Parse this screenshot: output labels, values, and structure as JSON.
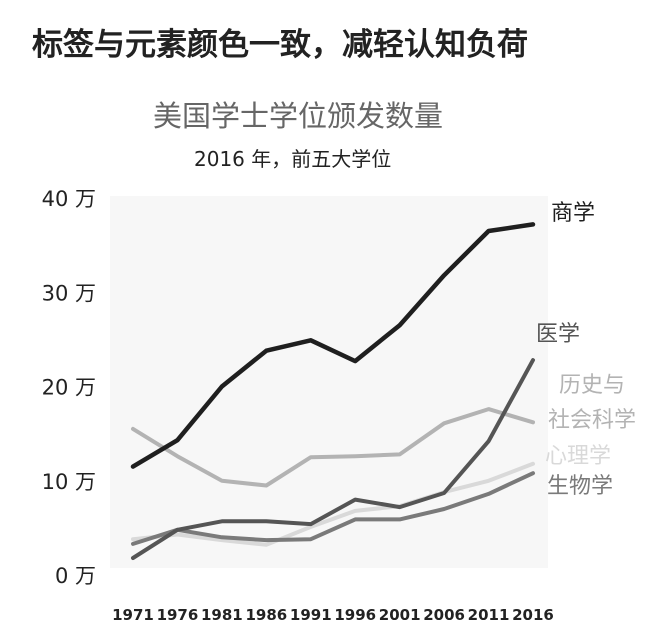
{
  "headline": "标签与元素颜色一致，减轻认知负荷",
  "chart_data": {
    "type": "line",
    "title": "美国学士学位颁发数量",
    "subtitle": "2016 年，前五大学位",
    "xlabel": "",
    "ylabel": "",
    "x": [
      1971,
      1976,
      1981,
      1986,
      1991,
      1996,
      2001,
      2006,
      2011,
      2016
    ],
    "ylim": [
      0,
      400000
    ],
    "yticks": [
      {
        "value": 0,
        "label": "0 万"
      },
      {
        "value": 100000,
        "label": "10 万"
      },
      {
        "value": 200000,
        "label": "20 万"
      },
      {
        "value": 300000,
        "label": "30 万"
      },
      {
        "value": 400000,
        "label": "40 万"
      }
    ],
    "grid": false,
    "legend": "direct labels at line ends",
    "series": [
      {
        "name": "商学",
        "color": "#1f1f1f",
        "values": [
          115000,
          143000,
          200000,
          238000,
          249000,
          227000,
          265000,
          318000,
          365000,
          372000
        ]
      },
      {
        "name": "医学",
        "color": "#555555",
        "values": [
          18000,
          48000,
          57000,
          57000,
          54000,
          80000,
          72000,
          87000,
          142000,
          228000
        ]
      },
      {
        "name": "历史与社会科学",
        "color": "#b3b3b3",
        "values": [
          155000,
          126000,
          100000,
          95000,
          125000,
          126000,
          128000,
          161000,
          176000,
          162000
        ]
      },
      {
        "name": "心理学",
        "color": "#d9d9d9",
        "values": [
          38000,
          43000,
          37000,
          32000,
          51000,
          68000,
          73000,
          88000,
          100000,
          118000
        ]
      },
      {
        "name": "生物学",
        "color": "#7a7a7a",
        "values": [
          33000,
          48000,
          40000,
          37000,
          38000,
          59000,
          59000,
          70000,
          86000,
          108000
        ]
      }
    ]
  }
}
